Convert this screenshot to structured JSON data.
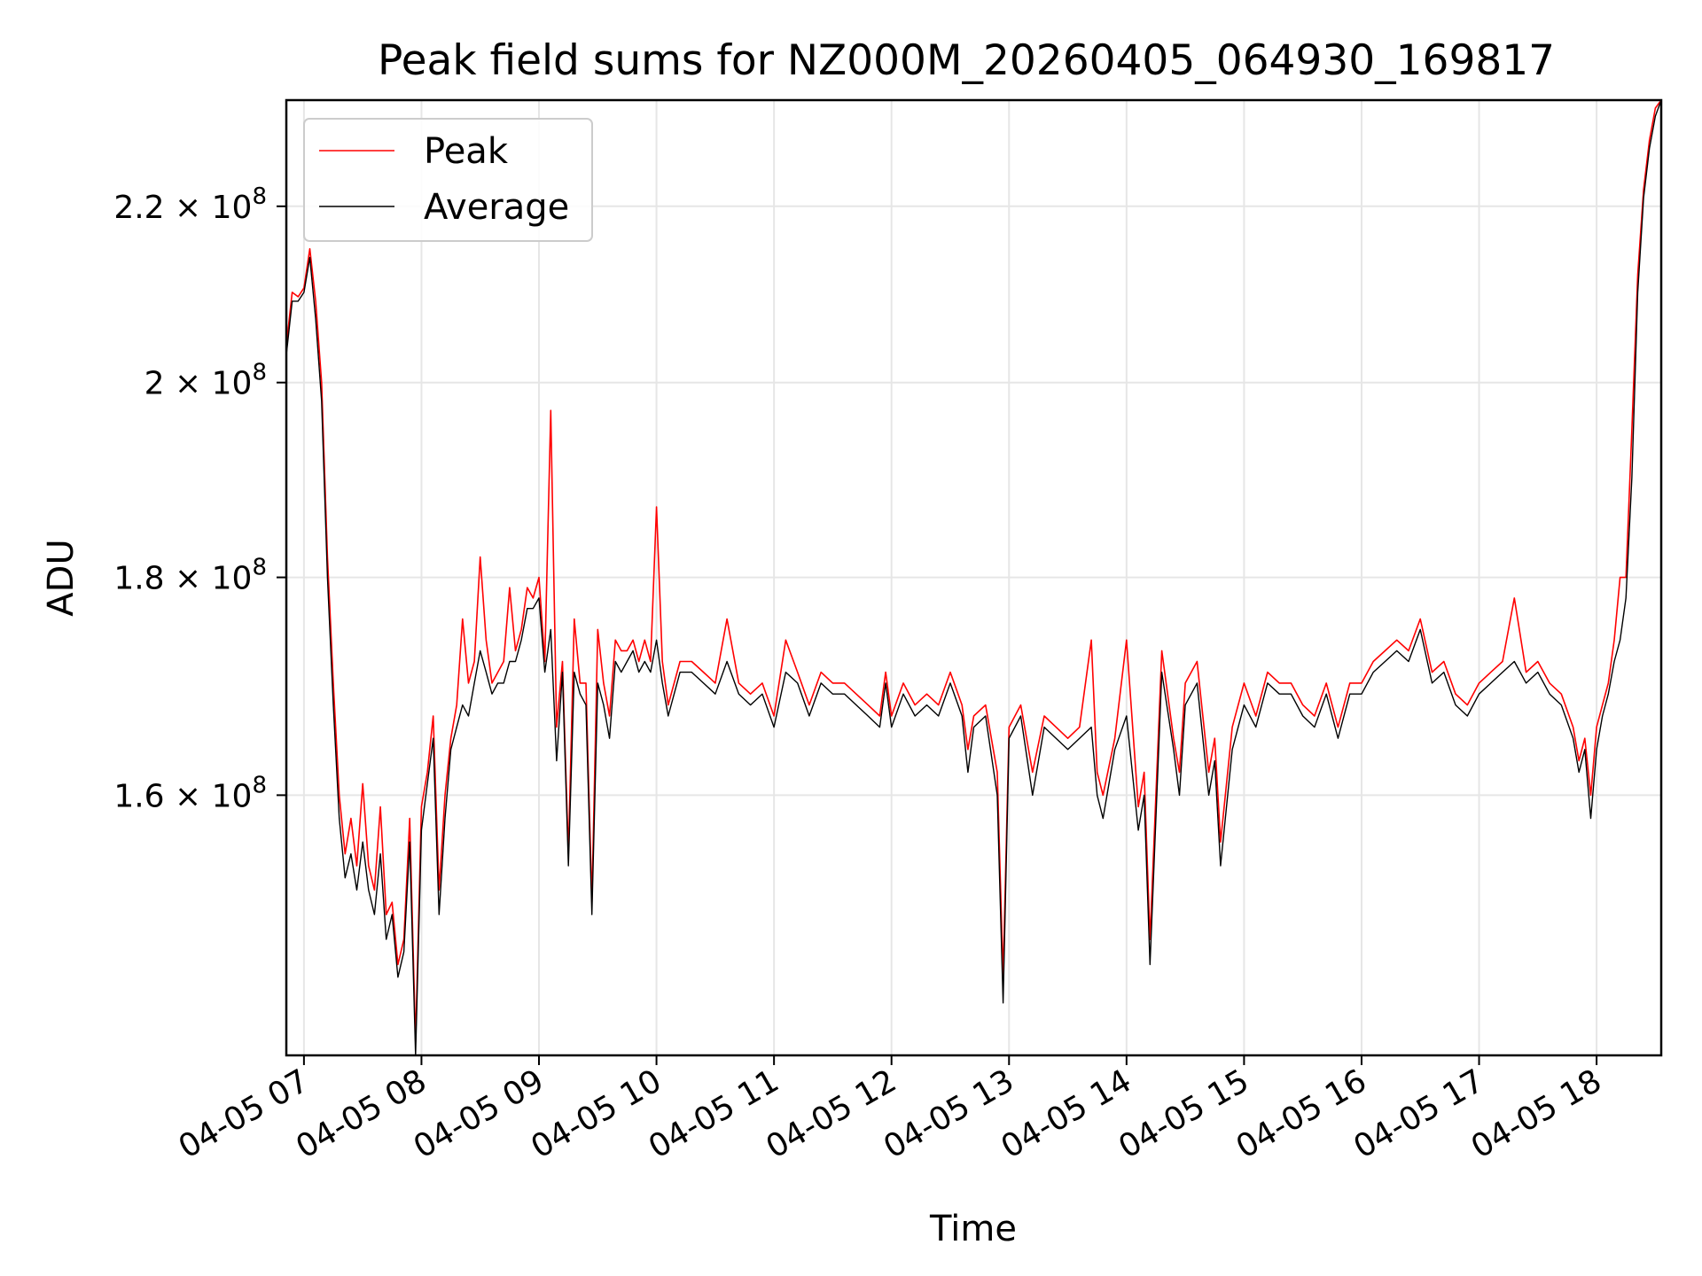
{
  "chart_data": {
    "type": "line",
    "title": "Peak field sums for NZ000M_20260405_064930_169817",
    "xlabel": "Time",
    "ylabel": "ADU",
    "yscale": "log",
    "xlim_hours": [
      6.85,
      18.55
    ],
    "ylim": [
      139000000,
      233000000
    ],
    "grid": true,
    "legend_position": "upper-left",
    "x_ticks": [
      {
        "hour": 7,
        "label": "04-05 07"
      },
      {
        "hour": 8,
        "label": "04-05 08"
      },
      {
        "hour": 9,
        "label": "04-05 09"
      },
      {
        "hour": 10,
        "label": "04-05 10"
      },
      {
        "hour": 11,
        "label": "04-05 11"
      },
      {
        "hour": 12,
        "label": "04-05 12"
      },
      {
        "hour": 13,
        "label": "04-05 13"
      },
      {
        "hour": 14,
        "label": "04-05 14"
      },
      {
        "hour": 15,
        "label": "04-05 15"
      },
      {
        "hour": 16,
        "label": "04-05 16"
      },
      {
        "hour": 17,
        "label": "04-05 17"
      },
      {
        "hour": 18,
        "label": "04-05 18"
      }
    ],
    "y_ticks": [
      {
        "value": 160000000,
        "mantissa": "1.6",
        "base": "10",
        "exp": "8"
      },
      {
        "value": 180000000,
        "mantissa": "1.8",
        "base": "10",
        "exp": "8"
      },
      {
        "value": 200000000,
        "mantissa": "2",
        "base": "10",
        "exp": "8"
      },
      {
        "value": 220000000,
        "mantissa": "2.2",
        "base": "10",
        "exp": "8"
      }
    ],
    "series": [
      {
        "name": "Peak",
        "color": "#ff0000",
        "x": [
          6.85,
          6.9,
          6.95,
          7.0,
          7.05,
          7.1,
          7.15,
          7.2,
          7.25,
          7.3,
          7.35,
          7.4,
          7.45,
          7.5,
          7.55,
          7.6,
          7.65,
          7.7,
          7.75,
          7.8,
          7.85,
          7.9,
          7.95,
          8.0,
          8.05,
          8.1,
          8.15,
          8.2,
          8.25,
          8.3,
          8.35,
          8.4,
          8.45,
          8.5,
          8.55,
          8.6,
          8.65,
          8.7,
          8.75,
          8.8,
          8.85,
          8.9,
          8.95,
          9.0,
          9.05,
          9.1,
          9.15,
          9.2,
          9.25,
          9.3,
          9.35,
          9.4,
          9.45,
          9.5,
          9.55,
          9.6,
          9.65,
          9.7,
          9.75,
          9.8,
          9.85,
          9.9,
          9.95,
          10.0,
          10.05,
          10.1,
          10.2,
          10.3,
          10.4,
          10.5,
          10.6,
          10.7,
          10.8,
          10.9,
          11.0,
          11.1,
          11.2,
          11.3,
          11.4,
          11.5,
          11.6,
          11.7,
          11.8,
          11.9,
          11.95,
          12.0,
          12.1,
          12.2,
          12.3,
          12.4,
          12.5,
          12.6,
          12.65,
          12.7,
          12.8,
          12.9,
          12.95,
          13.0,
          13.1,
          13.2,
          13.3,
          13.4,
          13.5,
          13.6,
          13.7,
          13.75,
          13.8,
          13.9,
          14.0,
          14.1,
          14.15,
          14.2,
          14.3,
          14.4,
          14.45,
          14.5,
          14.6,
          14.7,
          14.75,
          14.8,
          14.9,
          15.0,
          15.1,
          15.2,
          15.3,
          15.4,
          15.5,
          15.6,
          15.7,
          15.8,
          15.9,
          16.0,
          16.1,
          16.2,
          16.3,
          16.4,
          16.5,
          16.6,
          16.7,
          16.8,
          16.9,
          17.0,
          17.1,
          17.2,
          17.3,
          17.4,
          17.5,
          17.6,
          17.7,
          17.8,
          17.85,
          17.9,
          17.95,
          18.0,
          18.05,
          18.1,
          18.15,
          18.2,
          18.25,
          18.3,
          18.35,
          18.4,
          18.45,
          18.5,
          18.55
        ],
        "values": [
          204000000,
          210000000,
          209500000,
          210500000,
          215000000,
          209000000,
          200000000,
          182000000,
          170000000,
          160000000,
          155000000,
          158000000,
          154000000,
          161000000,
          154000000,
          152000000,
          159000000,
          150000000,
          151000000,
          146000000,
          148000000,
          158000000,
          140000000,
          159000000,
          162000000,
          167000000,
          152000000,
          160000000,
          165000000,
          168000000,
          176000000,
          170000000,
          172000000,
          182000000,
          174000000,
          170000000,
          171000000,
          172000000,
          179000000,
          173000000,
          175000000,
          179000000,
          178000000,
          180000000,
          172000000,
          197000000,
          166000000,
          172000000,
          155000000,
          176000000,
          170000000,
          170000000,
          151000000,
          175000000,
          170000000,
          167000000,
          174000000,
          173000000,
          173000000,
          174000000,
          172000000,
          174000000,
          172000000,
          187000000,
          172000000,
          168000000,
          172000000,
          172000000,
          171000000,
          170000000,
          176000000,
          170000000,
          169000000,
          170000000,
          167000000,
          174000000,
          171000000,
          168000000,
          171000000,
          170000000,
          170000000,
          169000000,
          168000000,
          167000000,
          171000000,
          167000000,
          170000000,
          168000000,
          169000000,
          168000000,
          171000000,
          168000000,
          164000000,
          167000000,
          168000000,
          162000000,
          145000000,
          166000000,
          168000000,
          162000000,
          167000000,
          166000000,
          165000000,
          166000000,
          174000000,
          162000000,
          160000000,
          165000000,
          174000000,
          159000000,
          162000000,
          148000000,
          173000000,
          165000000,
          162000000,
          170000000,
          172000000,
          162000000,
          165000000,
          156000000,
          166000000,
          170000000,
          167000000,
          171000000,
          170000000,
          170000000,
          168000000,
          167000000,
          170000000,
          166000000,
          170000000,
          170000000,
          172000000,
          173000000,
          174000000,
          173000000,
          176000000,
          171000000,
          172000000,
          169000000,
          168000000,
          170000000,
          171000000,
          172000000,
          178000000,
          171000000,
          172000000,
          170000000,
          169000000,
          166000000,
          163000000,
          165000000,
          160000000,
          166000000,
          168000000,
          170000000,
          174000000,
          180000000,
          180000000,
          195000000,
          212000000,
          222000000,
          228000000,
          232000000,
          233000000
        ]
      },
      {
        "name": "Average",
        "color": "#000000",
        "x": [
          6.85,
          6.9,
          6.95,
          7.0,
          7.05,
          7.1,
          7.15,
          7.2,
          7.25,
          7.3,
          7.35,
          7.4,
          7.45,
          7.5,
          7.55,
          7.6,
          7.65,
          7.7,
          7.75,
          7.8,
          7.85,
          7.9,
          7.95,
          8.0,
          8.05,
          8.1,
          8.15,
          8.2,
          8.25,
          8.3,
          8.35,
          8.4,
          8.45,
          8.5,
          8.55,
          8.6,
          8.65,
          8.7,
          8.75,
          8.8,
          8.85,
          8.9,
          8.95,
          9.0,
          9.05,
          9.1,
          9.15,
          9.2,
          9.25,
          9.3,
          9.35,
          9.4,
          9.45,
          9.5,
          9.55,
          9.6,
          9.65,
          9.7,
          9.75,
          9.8,
          9.85,
          9.9,
          9.95,
          10.0,
          10.05,
          10.1,
          10.2,
          10.3,
          10.4,
          10.5,
          10.6,
          10.7,
          10.8,
          10.9,
          11.0,
          11.1,
          11.2,
          11.3,
          11.4,
          11.5,
          11.6,
          11.7,
          11.8,
          11.9,
          11.95,
          12.0,
          12.1,
          12.2,
          12.3,
          12.4,
          12.5,
          12.6,
          12.65,
          12.7,
          12.8,
          12.9,
          12.95,
          13.0,
          13.1,
          13.2,
          13.3,
          13.4,
          13.5,
          13.6,
          13.7,
          13.75,
          13.8,
          13.9,
          14.0,
          14.1,
          14.15,
          14.2,
          14.3,
          14.4,
          14.45,
          14.5,
          14.6,
          14.7,
          14.75,
          14.8,
          14.9,
          15.0,
          15.1,
          15.2,
          15.3,
          15.4,
          15.5,
          15.6,
          15.7,
          15.8,
          15.9,
          16.0,
          16.1,
          16.2,
          16.3,
          16.4,
          16.5,
          16.6,
          16.7,
          16.8,
          16.9,
          17.0,
          17.1,
          17.2,
          17.3,
          17.4,
          17.5,
          17.6,
          17.7,
          17.8,
          17.85,
          17.9,
          17.95,
          18.0,
          18.05,
          18.1,
          18.15,
          18.2,
          18.25,
          18.3,
          18.35,
          18.4,
          18.45,
          18.5,
          18.55
        ],
        "values": [
          203000000,
          209000000,
          209000000,
          210000000,
          214000000,
          207000000,
          198000000,
          180000000,
          168000000,
          158000000,
          153000000,
          155000000,
          152000000,
          156000000,
          152000000,
          150000000,
          155000000,
          148000000,
          150000000,
          145000000,
          147000000,
          156000000,
          139000000,
          157000000,
          161000000,
          165000000,
          150000000,
          158000000,
          164000000,
          166000000,
          168000000,
          167000000,
          170000000,
          173000000,
          171000000,
          169000000,
          170000000,
          170000000,
          172000000,
          172000000,
          174000000,
          177000000,
          177000000,
          178000000,
          171000000,
          175000000,
          163000000,
          171000000,
          154000000,
          171000000,
          169000000,
          168000000,
          150000000,
          170000000,
          168000000,
          165000000,
          172000000,
          171000000,
          172000000,
          173000000,
          171000000,
          172000000,
          171000000,
          174000000,
          170000000,
          167000000,
          171000000,
          171000000,
          170000000,
          169000000,
          172000000,
          169000000,
          168000000,
          169000000,
          166000000,
          171000000,
          170000000,
          167000000,
          170000000,
          169000000,
          169000000,
          168000000,
          167000000,
          166000000,
          170000000,
          166000000,
          169000000,
          167000000,
          168000000,
          167000000,
          170000000,
          167000000,
          162000000,
          166000000,
          167000000,
          160000000,
          143000000,
          165000000,
          167000000,
          160000000,
          166000000,
          165000000,
          164000000,
          165000000,
          166000000,
          160000000,
          158000000,
          164000000,
          167000000,
          157000000,
          160000000,
          146000000,
          171000000,
          164000000,
          160000000,
          168000000,
          170000000,
          160000000,
          163000000,
          154000000,
          164000000,
          168000000,
          166000000,
          170000000,
          169000000,
          169000000,
          167000000,
          166000000,
          169000000,
          165000000,
          169000000,
          169000000,
          171000000,
          172000000,
          173000000,
          172000000,
          175000000,
          170000000,
          171000000,
          168000000,
          167000000,
          169000000,
          170000000,
          171000000,
          172000000,
          170000000,
          171000000,
          169000000,
          168000000,
          165000000,
          162000000,
          164000000,
          158000000,
          164000000,
          167000000,
          169000000,
          172000000,
          174000000,
          178000000,
          190000000,
          210000000,
          221000000,
          227000000,
          231000000,
          233000000
        ]
      }
    ]
  }
}
